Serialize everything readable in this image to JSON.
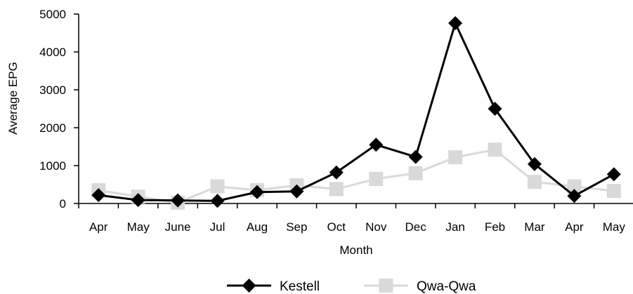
{
  "chart_data": {
    "type": "line",
    "title": "",
    "xlabel": "Month",
    "ylabel": "Average EPG",
    "categories": [
      "Apr",
      "May",
      "June",
      "Jul",
      "Aug",
      "Sep",
      "Oct",
      "Nov",
      "Dec",
      "Jan",
      "Feb",
      "Mar",
      "Apr",
      "May"
    ],
    "ylim": [
      0,
      5000
    ],
    "yticks": [
      0,
      1000,
      2000,
      3000,
      4000,
      5000
    ],
    "grid": false,
    "legend_position": "bottom",
    "series": [
      {
        "name": "Kestell",
        "color": "#000000",
        "marker": "diamond",
        "values": [
          220,
          90,
          80,
          70,
          300,
          320,
          820,
          1550,
          1230,
          4760,
          2500,
          1040,
          200,
          770
        ]
      },
      {
        "name": "Qwa-Qwa",
        "color": "#d9d9d9",
        "marker": "square",
        "values": [
          350,
          180,
          20,
          450,
          350,
          480,
          380,
          650,
          800,
          1220,
          1420,
          570,
          450,
          330
        ]
      }
    ]
  }
}
